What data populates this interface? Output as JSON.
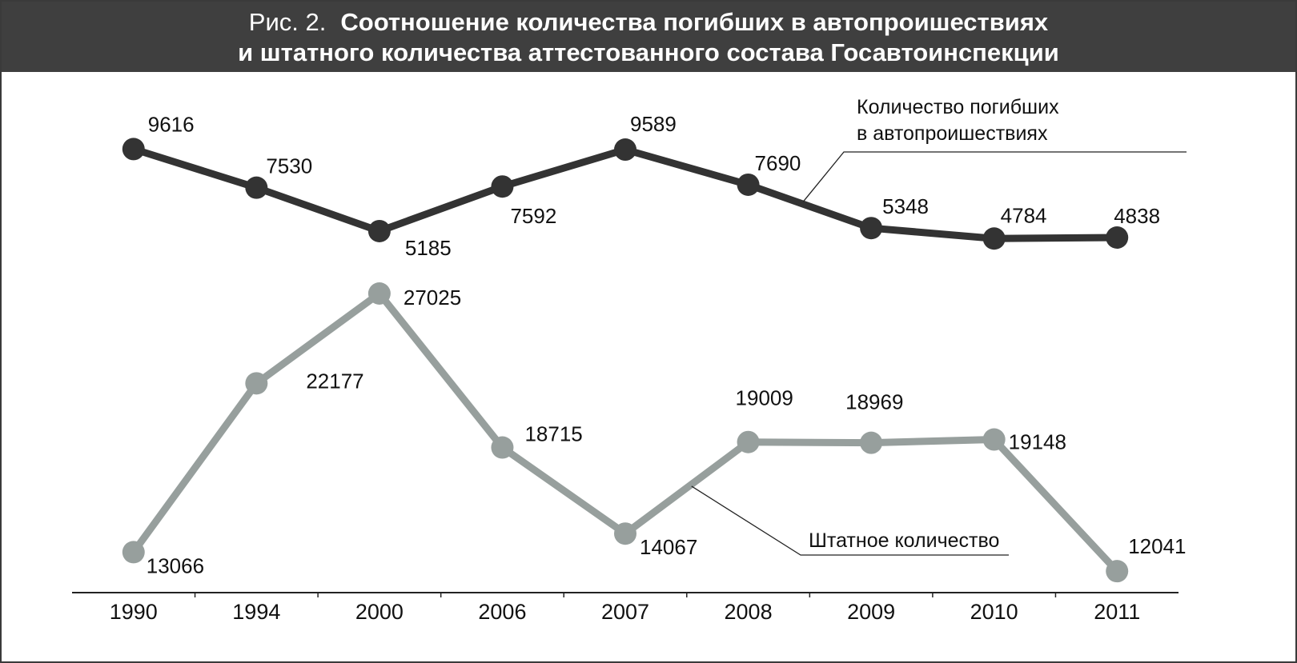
{
  "figure": {
    "prefix": "Рис. 2.",
    "title_line1": "Соотношение количества погибших в автопроишествиях",
    "title_line2": "и штатного количества аттестованного состава Госавтоинспекции"
  },
  "chart_data": {
    "type": "line",
    "categories": [
      "1990",
      "1994",
      "2000",
      "2006",
      "2007",
      "2008",
      "2009",
      "2010",
      "2011"
    ],
    "series": [
      {
        "name": "Количество погибших в автопроишествиях",
        "label_lines": [
          "Количество погибших",
          "в автопроишествиях"
        ],
        "values": [
          9616,
          7530,
          5185,
          7592,
          9589,
          7690,
          5348,
          4784,
          4838
        ],
        "color": "#333333"
      },
      {
        "name": "Штатное количество",
        "label_lines": [
          "Штатное количество"
        ],
        "values": [
          13066,
          22177,
          27025,
          18715,
          14067,
          19009,
          18969,
          19148,
          12041
        ],
        "color": "#979f9d"
      }
    ],
    "grid": false,
    "legend": "inline"
  }
}
